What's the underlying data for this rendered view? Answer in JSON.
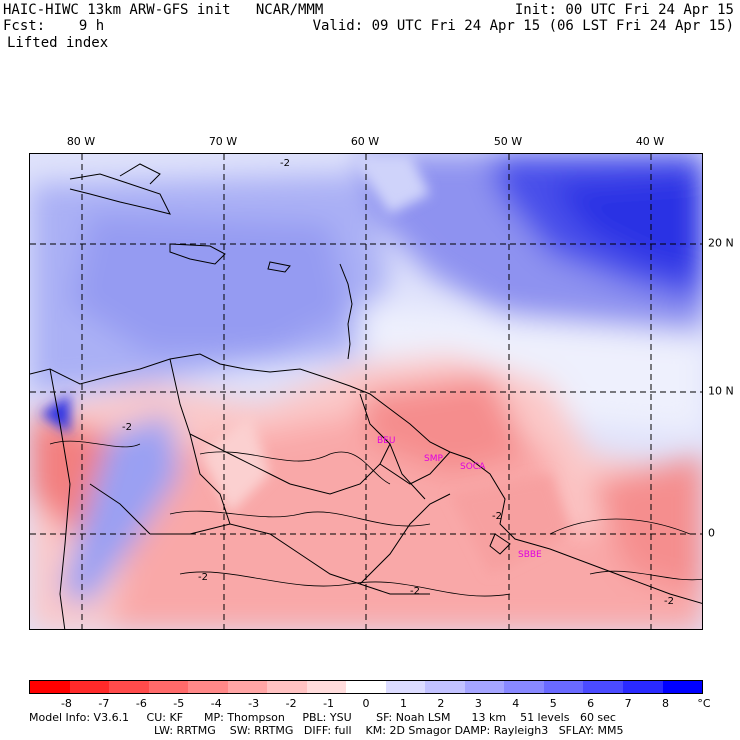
{
  "header": {
    "title": "HAIC-HIWC 13km ARW-GFS init   NCAR/MMM",
    "init": "Init: 00 UTC Fri 24 Apr 15",
    "fcst": "Fcst:    9 h",
    "valid": "Valid: 09 UTC Fri 24 Apr 15 (06 LST Fri 24 Apr 15)",
    "field": "Lifted index"
  },
  "axes": {
    "lon_labels": [
      "80 W",
      "70 W",
      "60 W",
      "50 W",
      "40 W"
    ],
    "lat_labels": [
      "20 N",
      "10 N",
      "0"
    ]
  },
  "stations": [
    "BEU",
    "SMP",
    "SOCA",
    "SBBE"
  ],
  "contour_labels": [
    "-2"
  ],
  "colorbar": {
    "labels": [
      "-8",
      "-7",
      "-6",
      "-5",
      "-4",
      "-3",
      "-2",
      "-1",
      "0",
      "1",
      "2",
      "3",
      "4",
      "5",
      "6",
      "7",
      "8"
    ],
    "unit": "°C",
    "colors": [
      "#ff0000",
      "#ff2a2a",
      "#ff4b4b",
      "#ff6a6a",
      "#ff8888",
      "#ffa5a5",
      "#ffc2c2",
      "#ffdcdc",
      "#ffffff",
      "#dcdcff",
      "#c2c2ff",
      "#a5a5ff",
      "#8888ff",
      "#6a6aff",
      "#4b4bff",
      "#2a2aff",
      "#0000ff"
    ]
  },
  "footer": {
    "line1": "Model Info: V3.6.1     CU: KF      MP: Thompson     PBL: YSU       SF: Noah LSM      13 km    51 levels   60 sec",
    "line2": "LW: RRTMG    SW: RRTMG   DIFF: full    KM: 2D Smagor DAMP: Rayleigh3   SFLAY: MM5"
  }
}
